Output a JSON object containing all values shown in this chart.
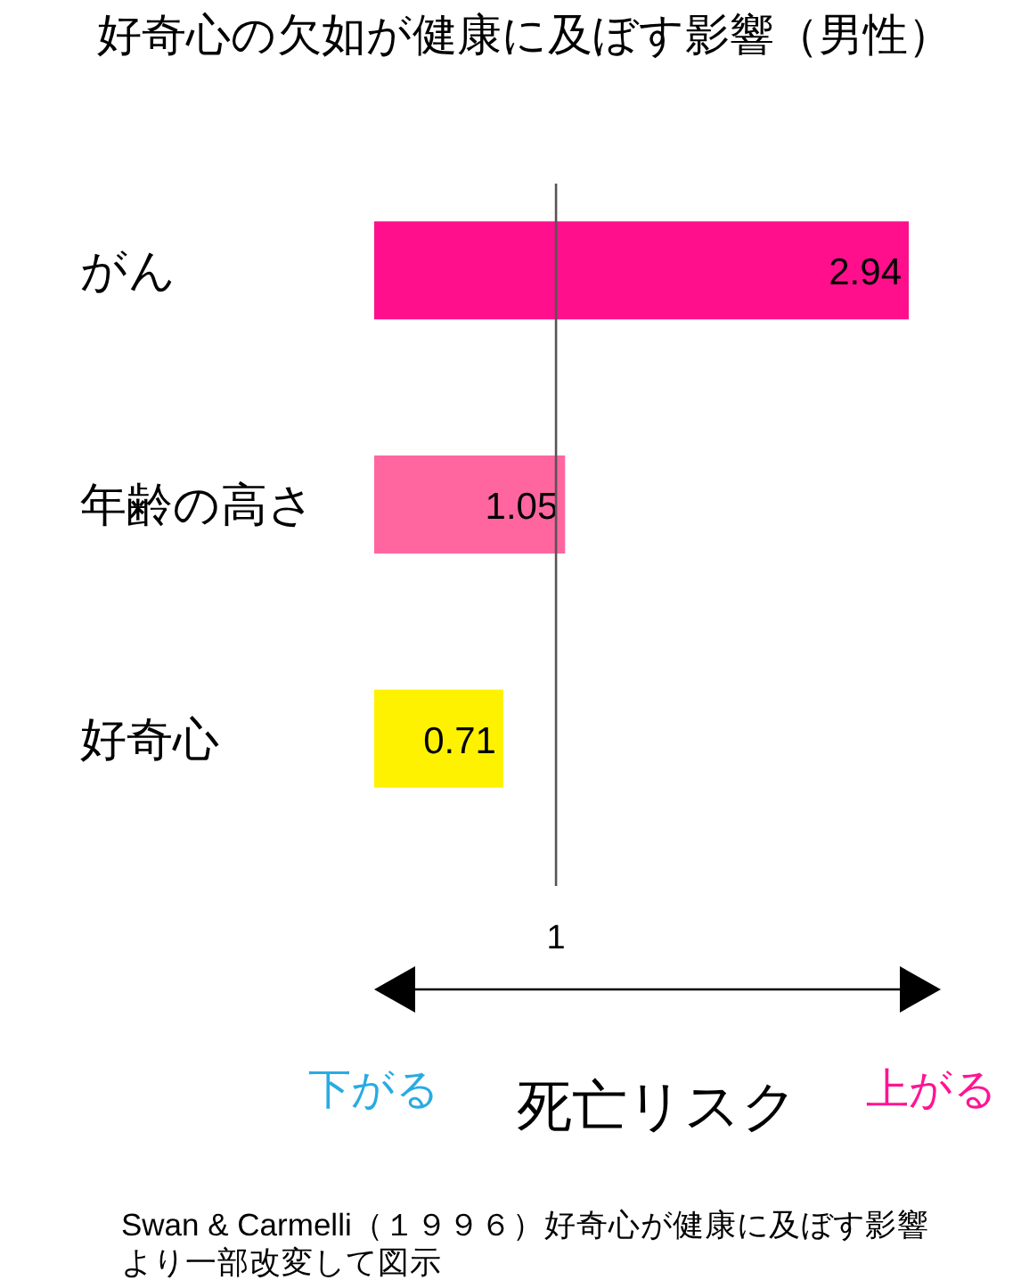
{
  "chart_data": {
    "type": "bar",
    "orientation": "horizontal",
    "title": "好奇心の欠如が健康に及ぼす影響（男性）",
    "xlabel": "死亡リスク",
    "categories": [
      "がん",
      "年齢の高さ",
      "好奇心"
    ],
    "values": [
      2.94,
      1.05,
      0.71
    ],
    "colors": [
      "#ff0f8c",
      "#ff66a0",
      "#fff200"
    ],
    "ref_lines": [
      {
        "axis": "x",
        "value": 1,
        "label": "1"
      }
    ],
    "data_labels": true,
    "tick_labels": "y",
    "annotations": [
      "下がる",
      "上がる",
      "Swan & Carmelli（１９９６）好奇心が健康に及ぼす影響より一部改変して図示"
    ]
  }
}
